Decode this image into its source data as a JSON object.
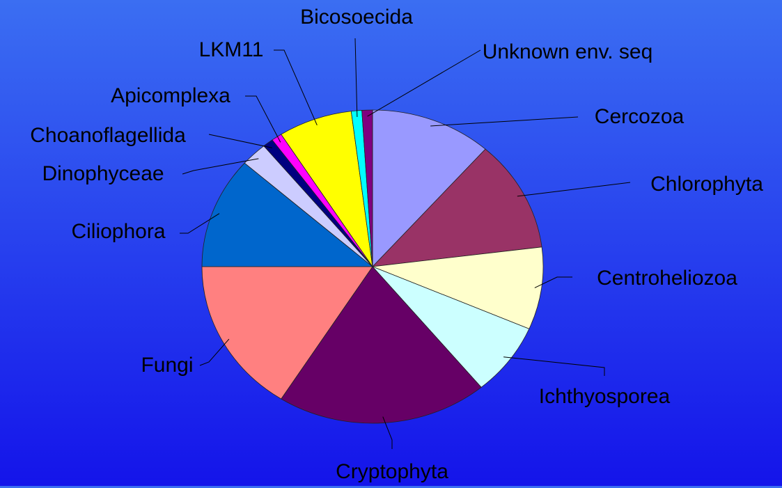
{
  "chart_data": {
    "type": "pie",
    "categories": [
      "Cercozoa",
      "Chlorophyta",
      "Centroheliozoa",
      "Ichthyosporea",
      "Cryptophyta",
      "Fungi",
      "Ciliophora",
      "Dinophyceae",
      "Choanoflagellida",
      "Apicomplexa",
      "LKM11",
      "Bicosoecida",
      "Unknown env. seq"
    ],
    "values": [
      11.5,
      11.5,
      8.5,
      7.5,
      20,
      16,
      11.5,
      2.5,
      1,
      1,
      7,
      1,
      1
    ],
    "colors": [
      "#9999ff",
      "#993366",
      "#ffffcc",
      "#ccffff",
      "#660066",
      "#ff8080",
      "#0066cc",
      "#ccccff",
      "#000080",
      "#ff00ff",
      "#ffff00",
      "#00ffff",
      "#800080"
    ]
  }
}
